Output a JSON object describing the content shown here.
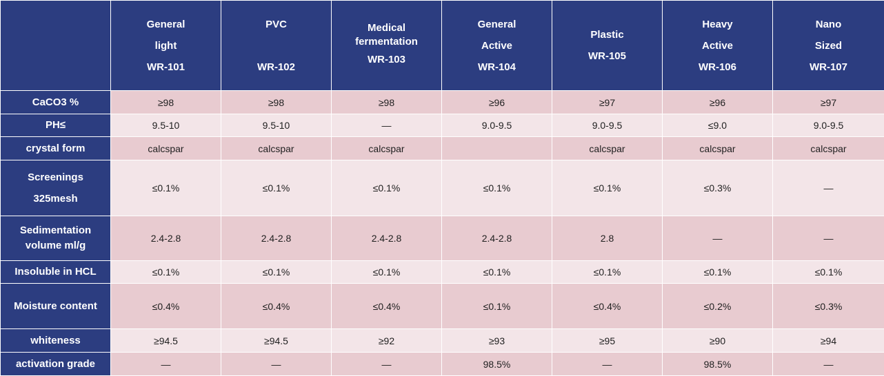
{
  "table": {
    "columns": [
      {
        "lines": [
          "General",
          "light",
          "WR-101"
        ]
      },
      {
        "lines": [
          "PVC",
          "",
          "WR-102"
        ]
      },
      {
        "lines": [
          "Medical",
          "fermentation",
          "WR-103"
        ],
        "tight_first": true
      },
      {
        "lines": [
          "General",
          "Active",
          "WR-104"
        ]
      },
      {
        "lines": [
          "Plastic",
          "WR-105"
        ]
      },
      {
        "lines": [
          "Heavy",
          "Active",
          "WR-106"
        ]
      },
      {
        "lines": [
          "Nano",
          "Sized",
          "WR-107"
        ]
      }
    ],
    "rows": [
      {
        "label": [
          "CaCO3 %"
        ],
        "values": [
          "≥98",
          "≥98",
          "≥98",
          "≥96",
          "≥97",
          "≥96",
          "≥97"
        ]
      },
      {
        "label": [
          "PH≤"
        ],
        "values": [
          "9.5-10",
          "9.5-10",
          "—",
          "9.0-9.5",
          "9.0-9.5",
          "≤9.0",
          "9.0-9.5"
        ]
      },
      {
        "label": [
          "crystal form"
        ],
        "values": [
          "calcspar",
          "calcspar",
          "calcspar",
          "",
          "calcspar",
          "calcspar",
          "calcspar"
        ]
      },
      {
        "label": [
          "Screenings",
          "325mesh"
        ],
        "wide": true,
        "values": [
          "≤0.1%",
          "≤0.1%",
          "≤0.1%",
          "≤0.1%",
          "≤0.1%",
          "≤0.3%",
          "—"
        ]
      },
      {
        "label": [
          "Sedimentation",
          "volume ml/g"
        ],
        "values": [
          "2.4-2.8",
          "2.4-2.8",
          "2.4-2.8",
          "2.4-2.8",
          "2.8",
          "—",
          "—"
        ]
      },
      {
        "label": [
          "Insoluble in HCL"
        ],
        "values": [
          "≤0.1%",
          "≤0.1%",
          "≤0.1%",
          "≤0.1%",
          "≤0.1%",
          "≤0.1%",
          "≤0.1%"
        ]
      },
      {
        "label": [
          "Moisture content"
        ],
        "values": [
          "≤0.4%",
          "≤0.4%",
          "≤0.4%",
          "≤0.1%",
          "≤0.4%",
          "≤0.2%",
          "≤0.3%"
        ]
      },
      {
        "label": [
          "whiteness"
        ],
        "values": [
          "≥94.5",
          "≥94.5",
          "≥92",
          "≥93",
          "≥95",
          "≥90",
          "≥94"
        ]
      },
      {
        "label": [
          "activation grade"
        ],
        "values": [
          "—",
          "—",
          "—",
          "98.5%",
          "—",
          "98.5%",
          "—"
        ]
      }
    ]
  }
}
